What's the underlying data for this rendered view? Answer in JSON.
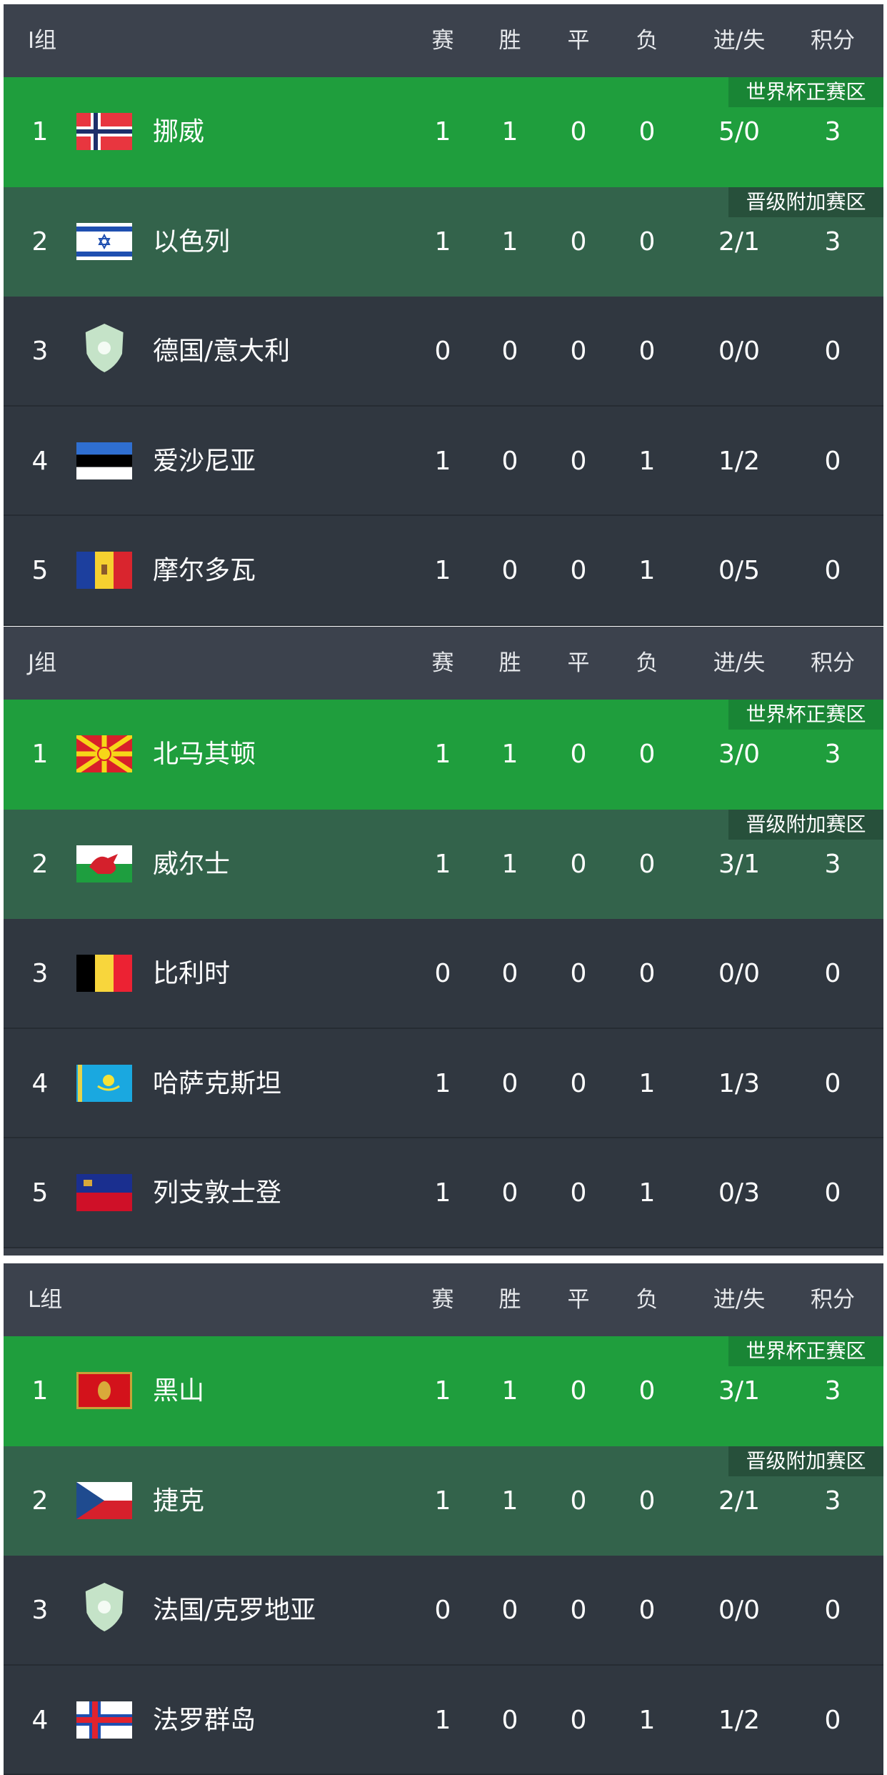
{
  "columns": [
    "赛",
    "胜",
    "平",
    "负",
    "进/失",
    "积分"
  ],
  "badges": {
    "world_cup": "世界杯正赛区",
    "playoff": "晋级附加赛区"
  },
  "colors": {
    "header": "#3c424d",
    "qualify": "#1f9e3d",
    "playoff": "#33634b",
    "row": "#303740"
  },
  "groups": [
    {
      "name": "I组",
      "rows": [
        {
          "rank": "1",
          "team": "挪威",
          "flag": "norway-flag",
          "zone": "world_cup",
          "stats": [
            "1",
            "1",
            "0",
            "0",
            "5/0",
            "3"
          ]
        },
        {
          "rank": "2",
          "team": "以色列",
          "flag": "israel-flag",
          "zone": "playoff",
          "stats": [
            "1",
            "1",
            "0",
            "0",
            "2/1",
            "3"
          ]
        },
        {
          "rank": "3",
          "team": "德国/意大利",
          "flag": "placeholder-shield",
          "zone": "",
          "stats": [
            "0",
            "0",
            "0",
            "0",
            "0/0",
            "0"
          ]
        },
        {
          "rank": "4",
          "team": "爱沙尼亚",
          "flag": "estonia-flag",
          "zone": "",
          "stats": [
            "1",
            "0",
            "0",
            "1",
            "1/2",
            "0"
          ]
        },
        {
          "rank": "5",
          "team": "摩尔多瓦",
          "flag": "moldova-flag",
          "zone": "",
          "stats": [
            "1",
            "0",
            "0",
            "1",
            "0/5",
            "0"
          ]
        }
      ]
    },
    {
      "name": "J组",
      "rows": [
        {
          "rank": "1",
          "team": "北马其顿",
          "flag": "north-macedonia-flag",
          "zone": "world_cup",
          "stats": [
            "1",
            "1",
            "0",
            "0",
            "3/0",
            "3"
          ]
        },
        {
          "rank": "2",
          "team": "威尔士",
          "flag": "wales-flag",
          "zone": "playoff",
          "stats": [
            "1",
            "1",
            "0",
            "0",
            "3/1",
            "3"
          ]
        },
        {
          "rank": "3",
          "team": "比利时",
          "flag": "belgium-flag",
          "zone": "",
          "stats": [
            "0",
            "0",
            "0",
            "0",
            "0/0",
            "0"
          ]
        },
        {
          "rank": "4",
          "team": "哈萨克斯坦",
          "flag": "kazakhstan-flag",
          "zone": "",
          "stats": [
            "1",
            "0",
            "0",
            "1",
            "1/3",
            "0"
          ]
        },
        {
          "rank": "5",
          "team": "列支敦士登",
          "flag": "liechtenstein-flag",
          "zone": "",
          "stats": [
            "1",
            "0",
            "0",
            "1",
            "0/3",
            "0"
          ]
        }
      ]
    },
    {
      "name": "L组",
      "rows": [
        {
          "rank": "1",
          "team": "黑山",
          "flag": "montenegro-flag",
          "zone": "world_cup",
          "stats": [
            "1",
            "1",
            "0",
            "0",
            "3/1",
            "3"
          ]
        },
        {
          "rank": "2",
          "team": "捷克",
          "flag": "czech-flag",
          "zone": "playoff",
          "stats": [
            "1",
            "1",
            "0",
            "0",
            "2/1",
            "3"
          ]
        },
        {
          "rank": "3",
          "team": "法国/克罗地亚",
          "flag": "placeholder-shield",
          "zone": "",
          "stats": [
            "0",
            "0",
            "0",
            "0",
            "0/0",
            "0"
          ]
        },
        {
          "rank": "4",
          "team": "法罗群岛",
          "flag": "faroe-islands-flag",
          "zone": "",
          "stats": [
            "1",
            "0",
            "0",
            "1",
            "1/2",
            "0"
          ]
        }
      ]
    }
  ]
}
